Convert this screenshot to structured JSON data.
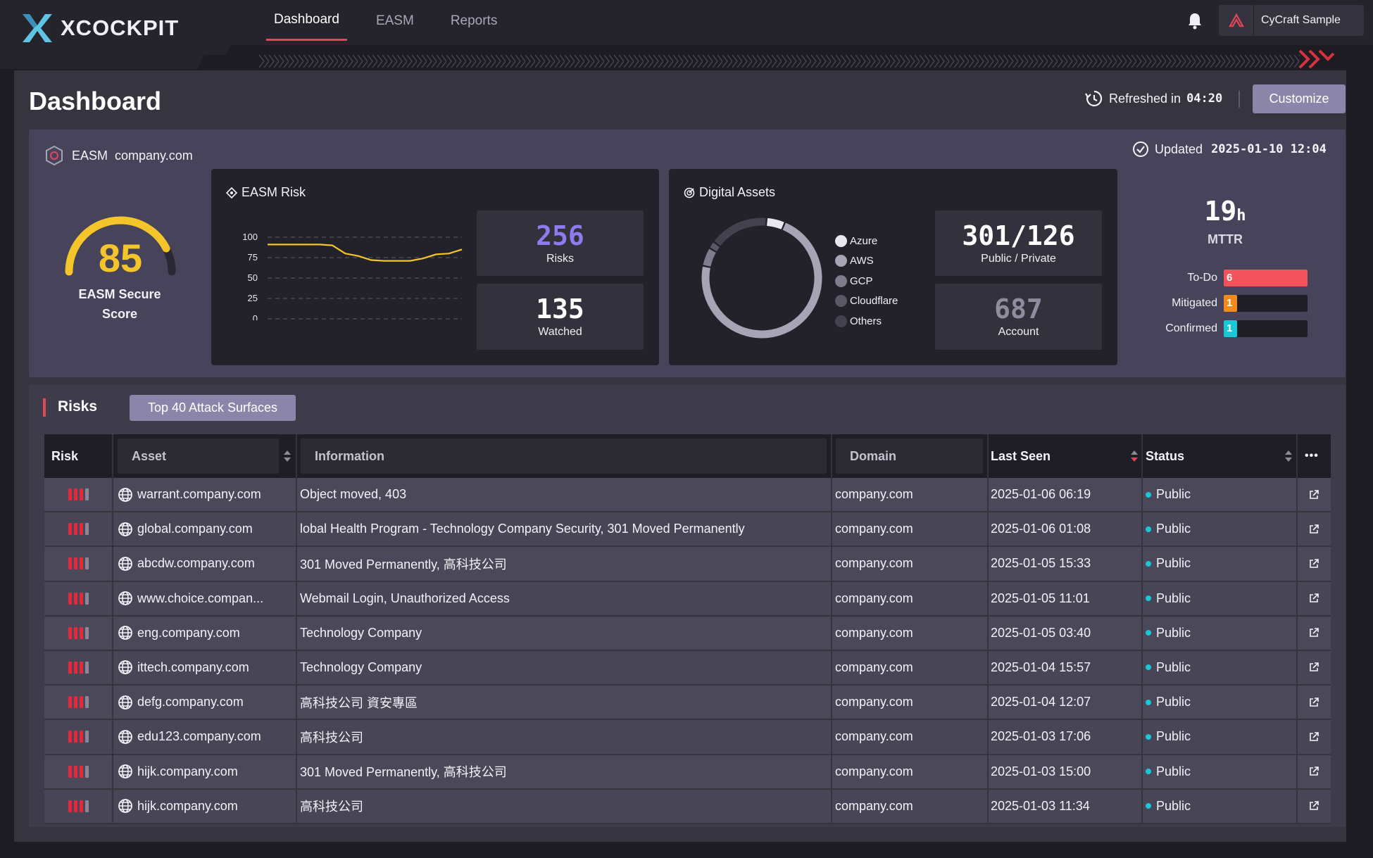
{
  "brand": {
    "name": "XCOCKPIT",
    "accent": "#e1475b",
    "gauge_color": "#f3c52b",
    "risk_purple": "#8d7cf0"
  },
  "nav": {
    "tabs": [
      {
        "label": "Dashboard"
      },
      {
        "label": "EASM"
      },
      {
        "label": "Reports"
      }
    ],
    "active": "Dashboard"
  },
  "account": {
    "name": "CyCraft Sample"
  },
  "header": {
    "title": "Dashboard",
    "refresh_label": "Refreshed in",
    "refresh_time": "04:20",
    "customize_label": "Customize"
  },
  "overview": {
    "label": "EASM",
    "domain": "company.com",
    "updated_label": "Updated",
    "updated_time": "2025-01-10 12:04",
    "score": {
      "value": "85",
      "fraction": 0.85,
      "label": "EASM Secure Score"
    },
    "easm_risk": {
      "title": "EASM Risk",
      "y_ticks": [
        "100",
        "75",
        "50",
        "25",
        "0"
      ],
      "risks": {
        "value": "256",
        "label": "Risks"
      },
      "watched": {
        "value": "135",
        "label": "Watched"
      }
    },
    "digital_assets": {
      "title": "Digital Assets",
      "legend": [
        "Azure",
        "AWS",
        "GCP",
        "Cloudflare",
        "Others"
      ],
      "public_private": {
        "value": "301/126",
        "label": "Public / Private"
      },
      "account": {
        "value": "687",
        "label": "Account"
      }
    },
    "mttr": {
      "value": "19",
      "unit": "h",
      "label": "MTTR",
      "bars": [
        {
          "label": "To-Do",
          "value": "6",
          "fraction": 1.0,
          "color": "#f2535d"
        },
        {
          "label": "Mitigated",
          "value": "1",
          "fraction": 0.16,
          "color": "#f28a1c"
        },
        {
          "label": "Confirmed",
          "value": "1",
          "fraction": 0.16,
          "color": "#19c7d6"
        }
      ]
    }
  },
  "chart_data": [
    {
      "type": "line",
      "title": "EASM Risk",
      "ylim": [
        0,
        100
      ],
      "y_ticks": [
        100,
        75,
        50,
        25,
        0
      ],
      "series": [
        {
          "name": "EASM Risk",
          "values": [
            91,
            91,
            91,
            91,
            91,
            90,
            80,
            77,
            72,
            71,
            71,
            71,
            74,
            79,
            80,
            85
          ]
        }
      ]
    },
    {
      "type": "pie",
      "title": "Digital Assets",
      "categories": [
        "Azure",
        "AWS",
        "GCP",
        "Cloudflare",
        "Others"
      ],
      "values": [
        5,
        72,
        5,
        2,
        16
      ]
    }
  ],
  "risks": {
    "title": "Risks",
    "filter_chip": "Top 40 Attack Surfaces",
    "columns": {
      "risk": "Risk",
      "asset": "Asset",
      "information": "Information",
      "domain": "Domain",
      "last_seen": "Last Seen",
      "status": "Status",
      "more": "•••"
    },
    "rows": [
      {
        "asset": "warrant.company.com",
        "information": "Object moved, 403",
        "domain": "company.com",
        "last_seen": "2025-01-06 06:19",
        "status": "Public"
      },
      {
        "asset": "global.company.com",
        "information": "lobal Health Program - Technology Company Security, 301 Moved Permanently",
        "domain": "company.com",
        "last_seen": "2025-01-06 01:08",
        "status": "Public"
      },
      {
        "asset": "abcdw.company.com",
        "information": "301 Moved Permanently, 高科技公司",
        "domain": "company.com",
        "last_seen": "2025-01-05 15:33",
        "status": "Public"
      },
      {
        "asset": "www.choice.compan...",
        "information": "Webmail Login, Unauthorized Access",
        "domain": "company.com",
        "last_seen": "2025-01-05 11:01",
        "status": "Public"
      },
      {
        "asset": "eng.company.com",
        "information": "Technology Company",
        "domain": "company.com",
        "last_seen": "2025-01-05 03:40",
        "status": "Public"
      },
      {
        "asset": "ittech.company.com",
        "information": "Technology Company",
        "domain": "company.com",
        "last_seen": "2025-01-04 15:57",
        "status": "Public"
      },
      {
        "asset": "defg.company.com",
        "information": "高科技公司 資安專區",
        "domain": "company.com",
        "last_seen": "2025-01-04 12:07",
        "status": "Public"
      },
      {
        "asset": "edu123.company.com",
        "information": "高科技公司",
        "domain": "company.com",
        "last_seen": "2025-01-03 17:06",
        "status": "Public"
      },
      {
        "asset": "hijk.company.com",
        "information": "301 Moved Permanently, 高科技公司",
        "domain": "company.com",
        "last_seen": "2025-01-03 15:00",
        "status": "Public"
      },
      {
        "asset": "hijk.company.com",
        "information": "高科技公司",
        "domain": "company.com",
        "last_seen": "2025-01-03 11:34",
        "status": "Public"
      }
    ]
  }
}
